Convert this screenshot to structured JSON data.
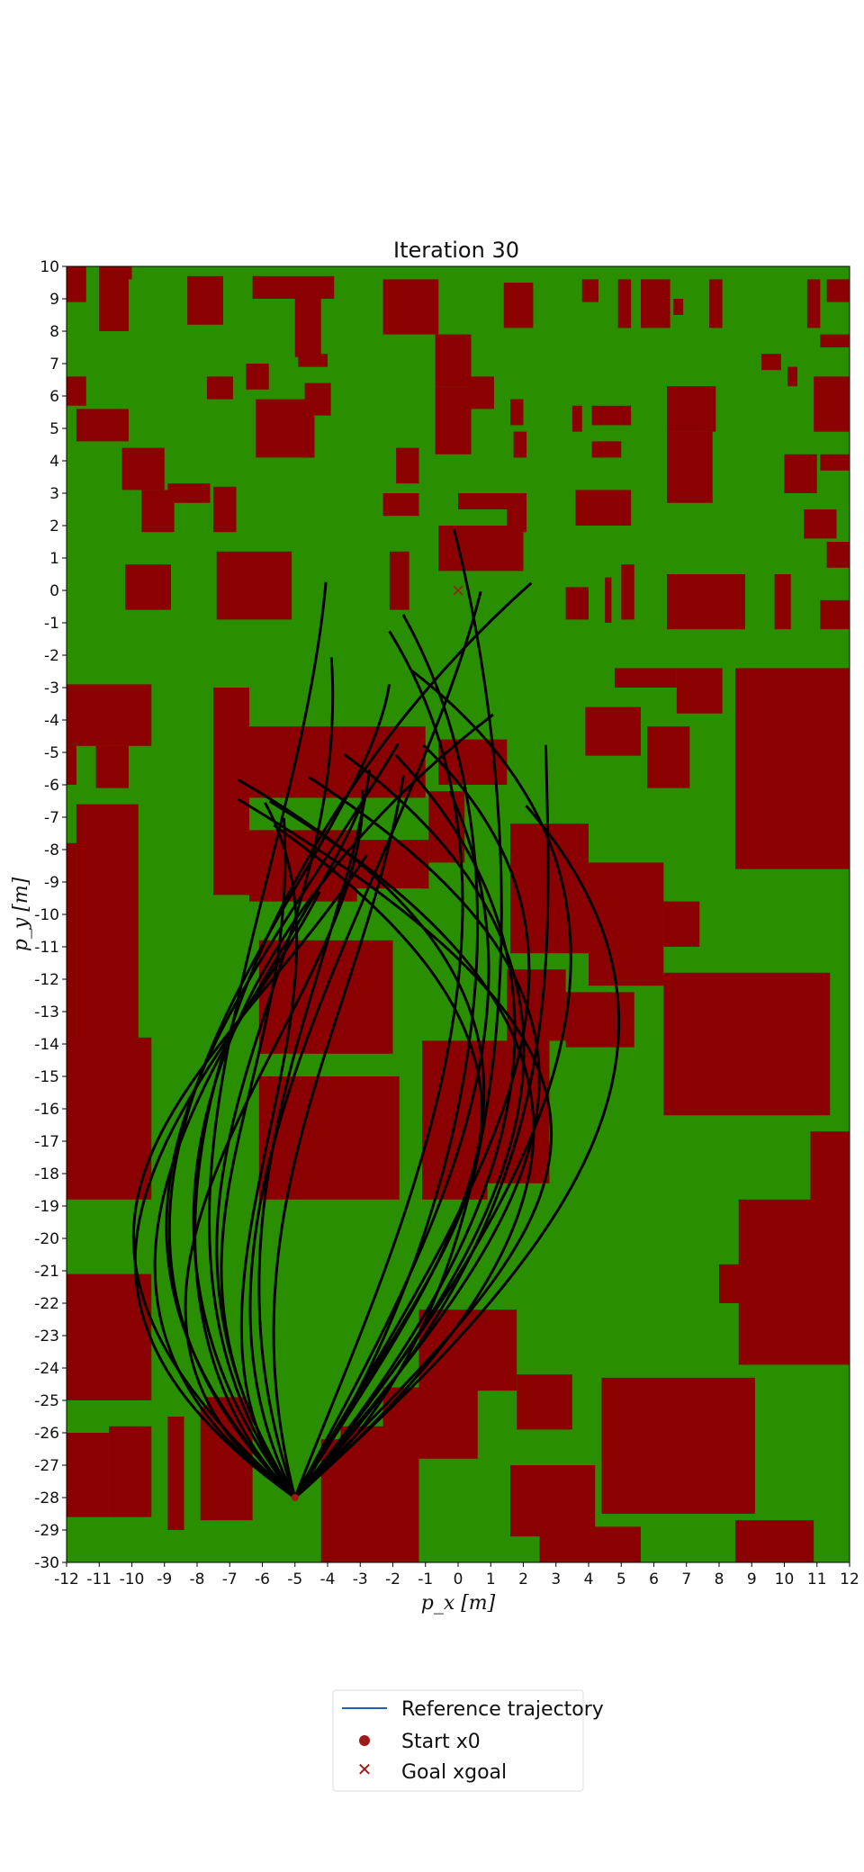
{
  "chart_data": {
    "type": "occupancy-map-trajectories",
    "title": "Iteration 30",
    "xlabel": "p_x [m]",
    "ylabel": "p_y [m]",
    "xlim": [
      -12,
      12
    ],
    "ylim": [
      -30,
      10
    ],
    "x_ticks": [
      -12,
      -11,
      -10,
      -9,
      -8,
      -7,
      -6,
      -5,
      -4,
      -3,
      -2,
      -1,
      0,
      1,
      2,
      3,
      4,
      5,
      6,
      7,
      8,
      9,
      10,
      11,
      12
    ],
    "y_ticks": [
      10,
      9,
      8,
      7,
      6,
      5,
      4,
      3,
      2,
      1,
      0,
      -1,
      -2,
      -3,
      -4,
      -5,
      -6,
      -7,
      -8,
      -9,
      -10,
      -11,
      -12,
      -13,
      -14,
      -15,
      -16,
      -17,
      -18,
      -19,
      -20,
      -21,
      -22,
      -23,
      -24,
      -25,
      -26,
      -27,
      -28,
      -29,
      -30
    ],
    "colors": {
      "free": "#2a8f00",
      "obstacle": "#8b0000",
      "trajectory": "#000000",
      "reference": "#1f5fbf",
      "marker": "#a01818"
    },
    "obstacles": [
      [
        -12,
        8.9,
        -11.4,
        10
      ],
      [
        -11,
        8.0,
        -10.1,
        10
      ],
      [
        -10.8,
        9.6,
        -10,
        10
      ],
      [
        -8.3,
        8.2,
        -7.2,
        9.7
      ],
      [
        -6.3,
        9.0,
        -3.8,
        9.7
      ],
      [
        -5,
        7.2,
        -4.2,
        9
      ],
      [
        -2.3,
        7.9,
        -0.6,
        9.6
      ],
      [
        -0.7,
        6.3,
        0.4,
        7.9
      ],
      [
        1.4,
        8.1,
        2.3,
        9.5
      ],
      [
        3.8,
        8.9,
        4.3,
        9.6
      ],
      [
        4.9,
        8.1,
        5.3,
        9.6
      ],
      [
        5.6,
        8.1,
        6.5,
        9.6
      ],
      [
        6.6,
        8.5,
        6.9,
        9.0
      ],
      [
        7.7,
        8.1,
        8.1,
        9.6
      ],
      [
        10.7,
        8.1,
        11.1,
        9.6
      ],
      [
        11.3,
        8.9,
        12,
        9.6
      ],
      [
        11.1,
        7.5,
        12,
        7.9
      ],
      [
        9.3,
        6.8,
        9.9,
        7.3
      ],
      [
        10.1,
        6.3,
        10.4,
        6.9
      ],
      [
        -7.7,
        5.9,
        -6.9,
        6.6
      ],
      [
        -6.5,
        6.2,
        -5.8,
        7.0
      ],
      [
        -4.7,
        5.4,
        -3.9,
        6.4
      ],
      [
        -4.9,
        6.9,
        -4.0,
        7.3
      ],
      [
        -6.2,
        4.1,
        -4.4,
        5.9
      ],
      [
        -11.7,
        4.6,
        -10.1,
        5.6
      ],
      [
        -12,
        5.7,
        -11.4,
        6.6
      ],
      [
        -0.7,
        4.2,
        0.4,
        6.3
      ],
      [
        0.4,
        5.6,
        1.1,
        6.6
      ],
      [
        1.6,
        5.1,
        2.0,
        5.9
      ],
      [
        1.7,
        4.1,
        2.1,
        4.9
      ],
      [
        3.5,
        4.9,
        3.8,
        5.7
      ],
      [
        4.1,
        5.1,
        5.3,
        5.7
      ],
      [
        4.1,
        4.1,
        5.0,
        4.6
      ],
      [
        6.4,
        4.9,
        7.9,
        6.3
      ],
      [
        6.4,
        2.7,
        7.8,
        4.9
      ],
      [
        10.9,
        4.9,
        12,
        6.6
      ],
      [
        11.1,
        3.7,
        12,
        4.2
      ],
      [
        10.0,
        3.0,
        11.0,
        4.2
      ],
      [
        -10.3,
        3.1,
        -9.0,
        4.4
      ],
      [
        -9.7,
        1.8,
        -8.7,
        3.1
      ],
      [
        -8.9,
        2.7,
        -7.6,
        3.3
      ],
      [
        -7.5,
        1.8,
        -6.8,
        3.2
      ],
      [
        -1.9,
        3.3,
        -1.2,
        4.4
      ],
      [
        -2.3,
        2.3,
        -1.2,
        3.0
      ],
      [
        0,
        2.5,
        2.1,
        3.0
      ],
      [
        1.5,
        1.8,
        2.1,
        2.5
      ],
      [
        3.6,
        2.0,
        5.3,
        3.1
      ],
      [
        10.6,
        1.6,
        11.6,
        2.5
      ],
      [
        -10.2,
        -0.6,
        -8.8,
        0.8
      ],
      [
        -7.4,
        -0.9,
        -5.1,
        1.2
      ],
      [
        -2.1,
        -0.6,
        -1.5,
        1.2
      ],
      [
        -0.6,
        0.6,
        2.0,
        2.0
      ],
      [
        3.3,
        -0.9,
        4.0,
        0.1
      ],
      [
        4.5,
        -1.0,
        4.7,
        0.4
      ],
      [
        5.0,
        -0.9,
        5.4,
        0.8
      ],
      [
        6.4,
        -1.2,
        8.8,
        0.5
      ],
      [
        9.7,
        -1.2,
        10.2,
        0.5
      ],
      [
        11.1,
        -1.2,
        12,
        -0.3
      ],
      [
        11.3,
        0.7,
        12,
        1.5
      ],
      [
        4.8,
        -3.0,
        6.7,
        -2.4
      ],
      [
        6.7,
        -3.8,
        8.1,
        -2.4
      ],
      [
        8.5,
        -8.6,
        12,
        -2.4
      ],
      [
        5.8,
        -6.1,
        7.1,
        -4.2
      ],
      [
        3.9,
        -5.1,
        5.6,
        -3.6
      ],
      [
        -12,
        -4.8,
        -9.4,
        -2.9
      ],
      [
        -12,
        -6.0,
        -11.7,
        -4.8
      ],
      [
        -11.1,
        -6.1,
        -10.1,
        -4.8
      ],
      [
        -7.5,
        -9.4,
        -6.4,
        -3.0
      ],
      [
        -6.4,
        -6.4,
        -1.0,
        -4.2
      ],
      [
        -6.4,
        -9.6,
        -3.1,
        -7.4
      ],
      [
        -3.1,
        -9.2,
        -0.9,
        -7.7
      ],
      [
        -0.9,
        -8.4,
        0.2,
        -6.2
      ],
      [
        -0.6,
        -6.0,
        1.5,
        -4.6
      ],
      [
        1.6,
        -11.2,
        4.0,
        -7.2
      ],
      [
        4.0,
        -12.2,
        6.3,
        -8.4
      ],
      [
        6.3,
        -11.0,
        7.4,
        -9.6
      ],
      [
        -11.7,
        -13.9,
        -9.8,
        -6.6
      ],
      [
        -12,
        -13.9,
        -11.7,
        -7.8
      ],
      [
        -12,
        -18.8,
        -9.4,
        -13.8
      ],
      [
        -6.1,
        -14.3,
        -2.0,
        -10.8
      ],
      [
        -6.1,
        -18.8,
        -1.8,
        -15.0
      ],
      [
        -1.1,
        -18.8,
        0.9,
        -13.9
      ],
      [
        0.9,
        -18.3,
        2.8,
        -13.9
      ],
      [
        1.5,
        -13.9,
        3.3,
        -11.7
      ],
      [
        3.3,
        -14.1,
        5.4,
        -12.4
      ],
      [
        6.3,
        -16.2,
        11.4,
        -11.8
      ],
      [
        10.8,
        -19.1,
        12,
        -16.7
      ],
      [
        8.6,
        -23.9,
        12,
        -18.8
      ],
      [
        8.0,
        -22.0,
        9.2,
        -20.8
      ],
      [
        -12,
        -25.0,
        -9.4,
        -21.1
      ],
      [
        -11.6,
        -23.4,
        -11.0,
        -22.8
      ],
      [
        -11.0,
        -24.1,
        -10.4,
        -23.3
      ],
      [
        -12,
        -28.6,
        -10.7,
        -26.0
      ],
      [
        -10.7,
        -28.6,
        -9.4,
        -25.8
      ],
      [
        -8.9,
        -29.0,
        -8.4,
        -25.5
      ],
      [
        -7.9,
        -28.7,
        -6.3,
        -25.2
      ],
      [
        -7.7,
        -25.8,
        -6.5,
        -24.9
      ],
      [
        -1.2,
        -24.7,
        1.8,
        -22.2
      ],
      [
        1.8,
        -25.9,
        3.5,
        -24.2
      ],
      [
        -4.2,
        -30,
        -1.2,
        -26.2
      ],
      [
        -2.3,
        -26.8,
        0.6,
        -24.6
      ],
      [
        -3.6,
        -27.0,
        -1.5,
        -25.8
      ],
      [
        1.6,
        -29.2,
        4.2,
        -27.0
      ],
      [
        2.5,
        -30,
        5.6,
        -28.9
      ],
      [
        4.4,
        -28.5,
        9.1,
        -24.3
      ],
      [
        5.4,
        -26.5,
        6.7,
        -25.0
      ],
      [
        8.5,
        -30,
        10.9,
        -28.7
      ]
    ],
    "start": [
      -5,
      -28
    ],
    "goal": [
      0,
      0
    ],
    "trajectory_count": 30,
    "legend": {
      "position": "bottom-center",
      "entries": [
        "Reference trajectory",
        "Start x0",
        "Goal xgoal"
      ]
    }
  }
}
